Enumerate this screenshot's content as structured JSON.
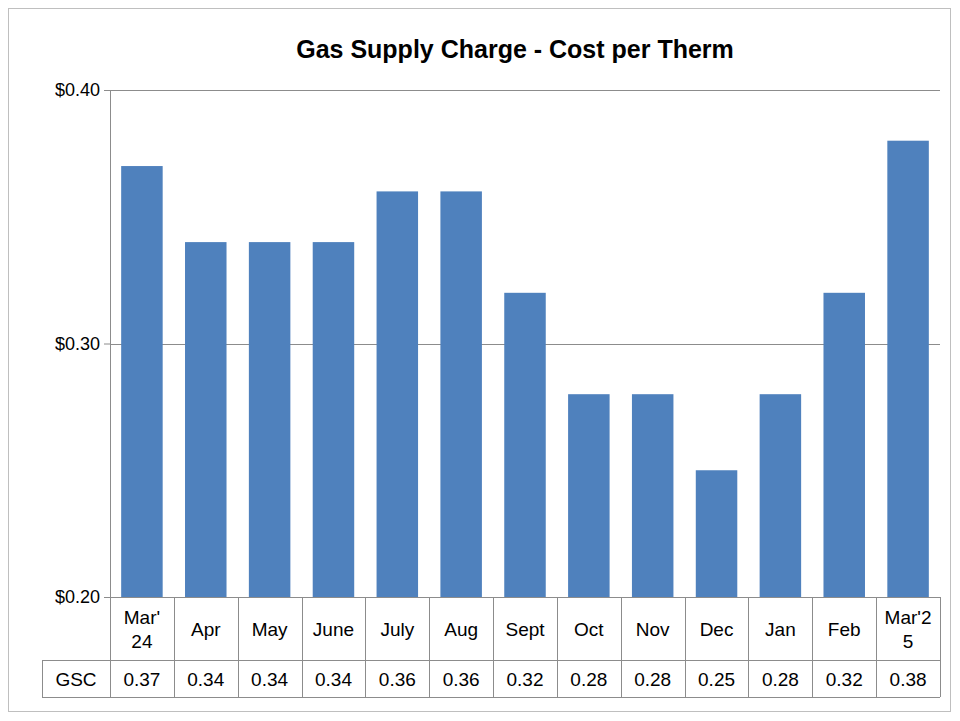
{
  "chart_data": {
    "type": "bar",
    "title": "Gas Supply Charge - Cost per Therm",
    "categories": [
      "Mar'\n24",
      "Apr",
      "May",
      "June",
      "July",
      "Aug",
      "Sept",
      "Oct",
      "Nov",
      "Dec",
      "Jan",
      "Feb",
      "Mar'2\n5"
    ],
    "series": [
      {
        "name": "GSC",
        "color": "#4f81bd",
        "values": [
          0.37,
          0.34,
          0.34,
          0.34,
          0.36,
          0.36,
          0.32,
          0.28,
          0.28,
          0.25,
          0.28,
          0.32,
          0.38
        ]
      }
    ],
    "ylim": [
      0.2,
      0.4
    ],
    "yticks": [
      {
        "value": 0.2,
        "label": "$0.20"
      },
      {
        "value": 0.3,
        "label": "$0.30"
      },
      {
        "value": 0.4,
        "label": "$0.40"
      }
    ],
    "grid": true,
    "data_labels": true
  }
}
